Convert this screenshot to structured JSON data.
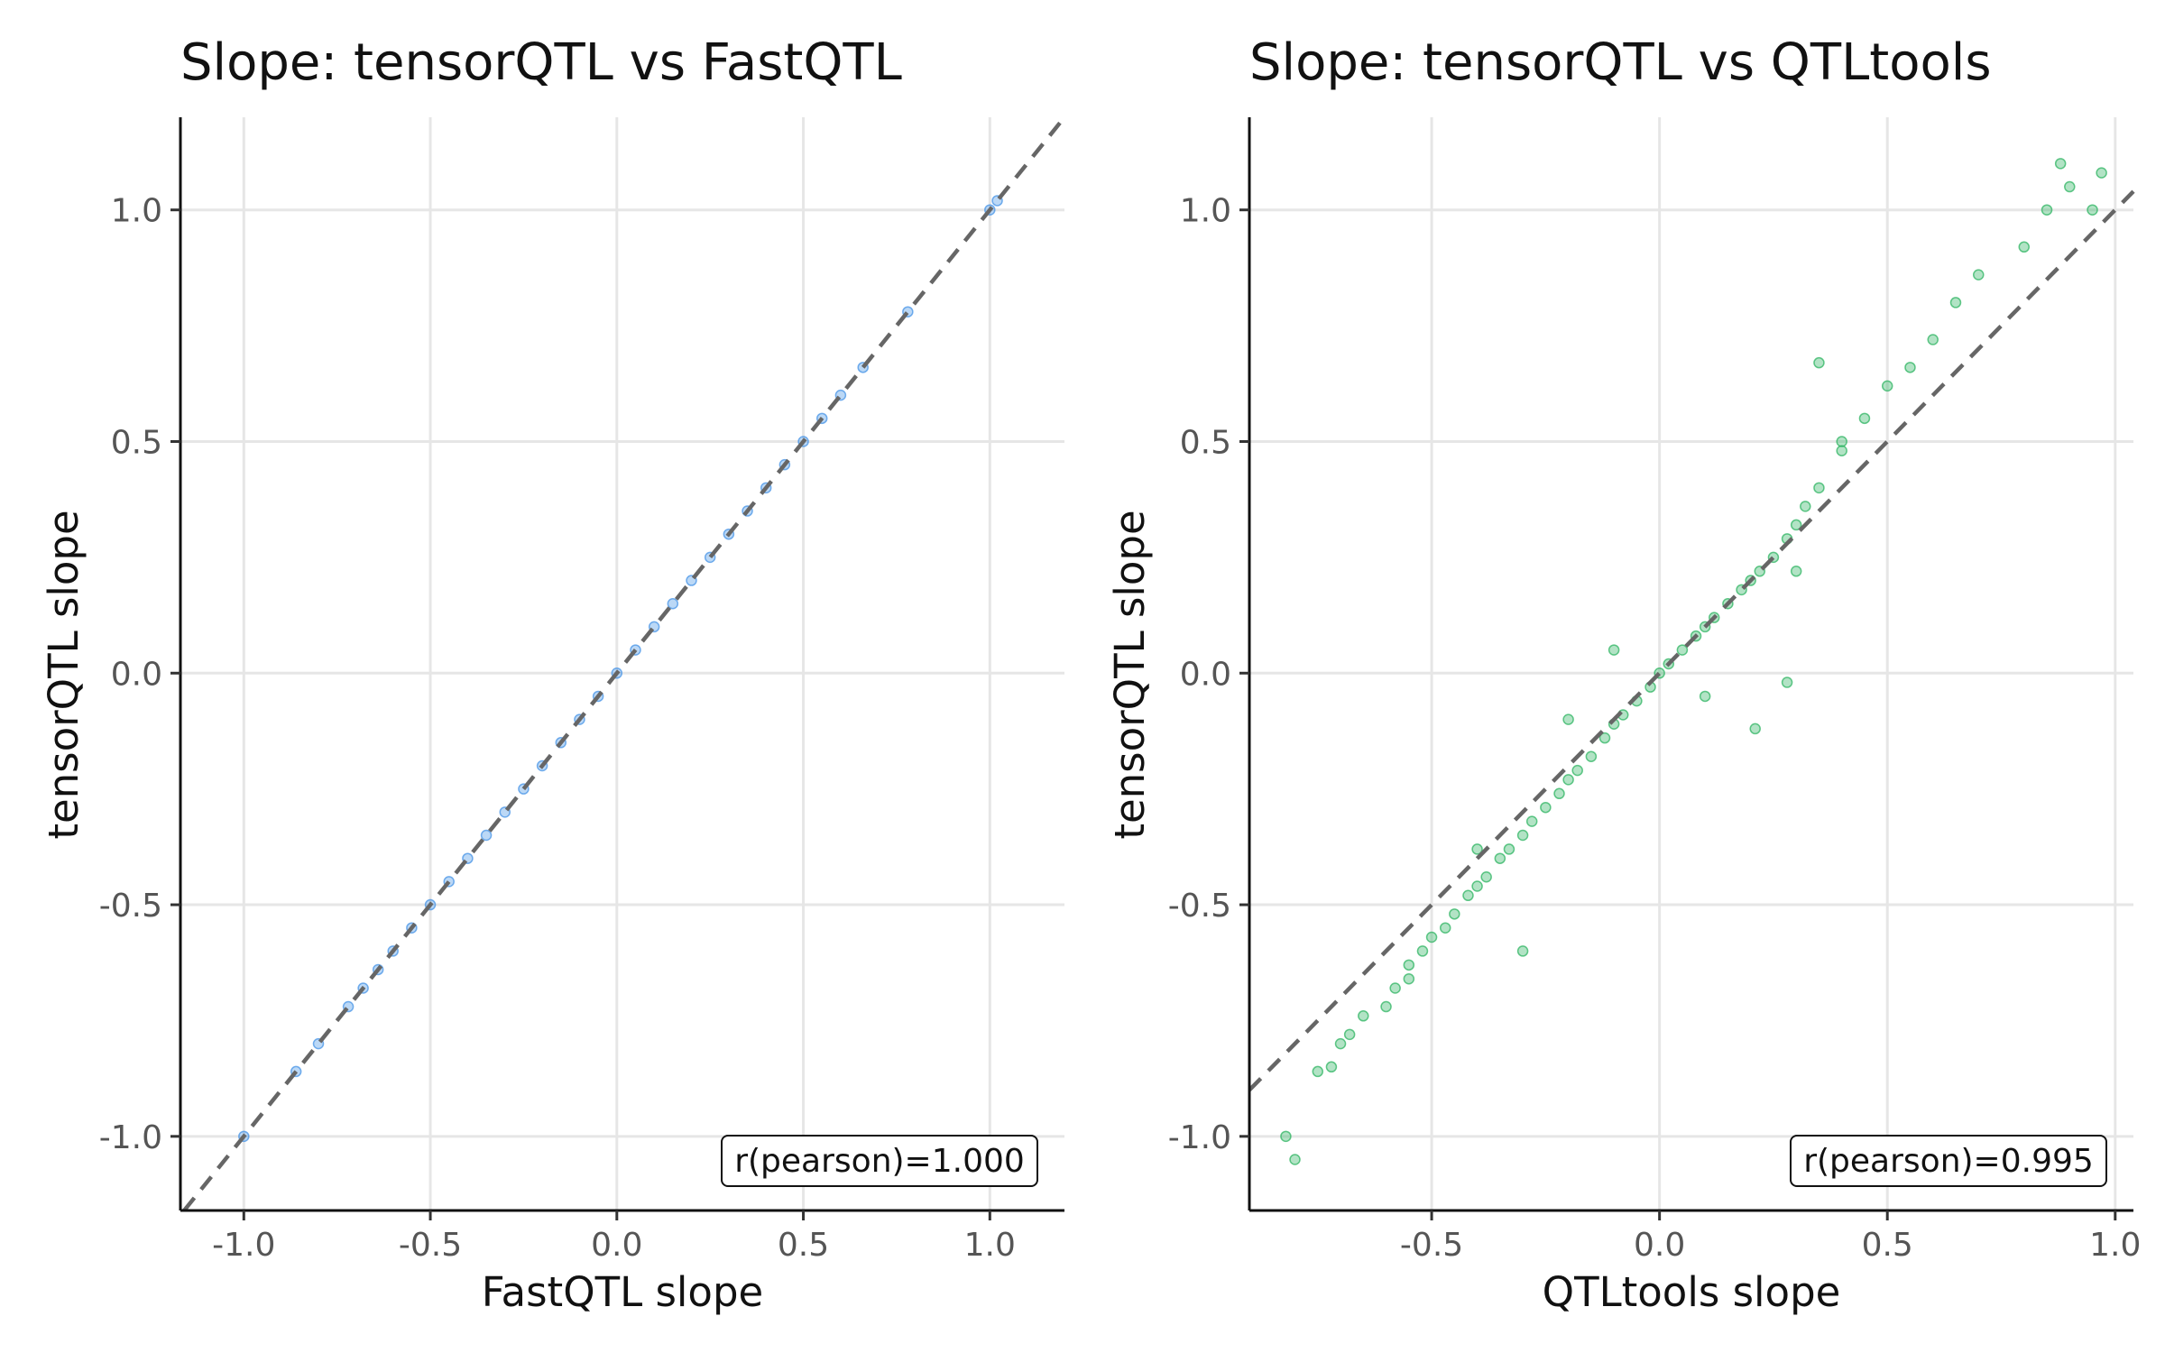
{
  "chart_data": [
    {
      "type": "scatter",
      "title": "Slope: tensorQTL vs FastQTL",
      "xlabel": "FastQTL slope",
      "ylabel": "tensorQTL slope",
      "xlim": [
        -1.17,
        1.2
      ],
      "ylim": [
        -1.16,
        1.2
      ],
      "xticks": [
        -1.0,
        -0.5,
        0.0,
        0.5,
        1.0
      ],
      "yticks": [
        -1.0,
        -0.5,
        0.0,
        0.5,
        1.0
      ],
      "tick_labels": [
        "-1.0",
        "-0.5",
        "0.0",
        "0.5",
        "1.0"
      ],
      "grid": true,
      "point_color": "#3d8fe6",
      "reference_line": "y = x (dashed)",
      "annotation": {
        "text": "r(pearson)=1.000",
        "position": "bottom-right"
      },
      "points": [
        [
          -1.0,
          -1.0
        ],
        [
          -0.86,
          -0.86
        ],
        [
          -0.8,
          -0.8
        ],
        [
          -0.72,
          -0.72
        ],
        [
          -0.68,
          -0.68
        ],
        [
          -0.64,
          -0.64
        ],
        [
          -0.6,
          -0.6
        ],
        [
          -0.55,
          -0.55
        ],
        [
          -0.5,
          -0.5
        ],
        [
          -0.45,
          -0.45
        ],
        [
          -0.4,
          -0.4
        ],
        [
          -0.35,
          -0.35
        ],
        [
          -0.3,
          -0.3
        ],
        [
          -0.25,
          -0.25
        ],
        [
          -0.2,
          -0.2
        ],
        [
          -0.15,
          -0.15
        ],
        [
          -0.1,
          -0.1
        ],
        [
          -0.05,
          -0.05
        ],
        [
          0.0,
          0.0
        ],
        [
          0.05,
          0.05
        ],
        [
          0.1,
          0.1
        ],
        [
          0.15,
          0.15
        ],
        [
          0.2,
          0.2
        ],
        [
          0.25,
          0.25
        ],
        [
          0.3,
          0.3
        ],
        [
          0.35,
          0.35
        ],
        [
          0.4,
          0.4
        ],
        [
          0.45,
          0.45
        ],
        [
          0.5,
          0.5
        ],
        [
          0.55,
          0.55
        ],
        [
          0.6,
          0.6
        ],
        [
          0.66,
          0.66
        ],
        [
          0.78,
          0.78
        ],
        [
          1.0,
          1.0
        ],
        [
          1.02,
          1.02
        ]
      ]
    },
    {
      "type": "scatter",
      "title": "Slope: tensorQTL vs QTLtools",
      "xlabel": "QTLtools slope",
      "ylabel": "tensorQTL slope",
      "xlim": [
        -0.9,
        1.04
      ],
      "ylim": [
        -1.16,
        1.2
      ],
      "xticks": [
        -0.5,
        0.0,
        0.5,
        1.0
      ],
      "yticks": [
        -1.0,
        -0.5,
        0.0,
        0.5,
        1.0
      ],
      "xtick_labels": [
        "-0.5",
        "0.0",
        "0.5",
        "1.0"
      ],
      "ytick_labels": [
        "-1.0",
        "-0.5",
        "0.0",
        "0.5",
        "1.0"
      ],
      "grid": true,
      "point_color": "#23b05a",
      "reference_line": "y = x (dashed)",
      "annotation": {
        "text": "r(pearson)=0.995",
        "position": "bottom-right"
      },
      "points": [
        [
          -0.82,
          -1.0
        ],
        [
          -0.8,
          -1.05
        ],
        [
          -0.75,
          -0.86
        ],
        [
          -0.72,
          -0.85
        ],
        [
          -0.7,
          -0.8
        ],
        [
          -0.68,
          -0.78
        ],
        [
          -0.65,
          -0.74
        ],
        [
          -0.6,
          -0.72
        ],
        [
          -0.58,
          -0.68
        ],
        [
          -0.55,
          -0.63
        ],
        [
          -0.52,
          -0.6
        ],
        [
          -0.5,
          -0.57
        ],
        [
          -0.47,
          -0.55
        ],
        [
          -0.45,
          -0.52
        ],
        [
          -0.42,
          -0.48
        ],
        [
          -0.4,
          -0.46
        ],
        [
          -0.38,
          -0.44
        ],
        [
          -0.35,
          -0.4
        ],
        [
          -0.33,
          -0.38
        ],
        [
          -0.3,
          -0.35
        ],
        [
          -0.28,
          -0.32
        ],
        [
          -0.25,
          -0.29
        ],
        [
          -0.22,
          -0.26
        ],
        [
          -0.2,
          -0.23
        ],
        [
          -0.18,
          -0.21
        ],
        [
          -0.15,
          -0.18
        ],
        [
          -0.12,
          -0.14
        ],
        [
          -0.1,
          -0.11
        ],
        [
          -0.08,
          -0.09
        ],
        [
          -0.05,
          -0.06
        ],
        [
          -0.02,
          -0.03
        ],
        [
          0.0,
          0.0
        ],
        [
          0.02,
          0.02
        ],
        [
          0.05,
          0.05
        ],
        [
          0.08,
          0.08
        ],
        [
          0.1,
          0.1
        ],
        [
          0.12,
          0.12
        ],
        [
          0.15,
          0.15
        ],
        [
          0.18,
          0.18
        ],
        [
          0.2,
          0.2
        ],
        [
          0.22,
          0.22
        ],
        [
          0.25,
          0.25
        ],
        [
          0.28,
          0.29
        ],
        [
          0.3,
          0.32
        ],
        [
          0.32,
          0.36
        ],
        [
          0.35,
          0.4
        ],
        [
          0.4,
          0.48
        ],
        [
          0.45,
          0.55
        ],
        [
          0.5,
          0.62
        ],
        [
          0.55,
          0.66
        ],
        [
          0.6,
          0.72
        ],
        [
          0.65,
          0.8
        ],
        [
          0.7,
          0.86
        ],
        [
          0.8,
          0.92
        ],
        [
          0.85,
          1.0
        ],
        [
          0.88,
          1.1
        ],
        [
          0.9,
          1.05
        ],
        [
          0.95,
          1.0
        ],
        [
          0.97,
          1.08
        ],
        [
          0.35,
          0.67
        ],
        [
          0.21,
          -0.12
        ],
        [
          0.28,
          -0.02
        ],
        [
          -0.3,
          -0.6
        ],
        [
          -0.55,
          -0.66
        ],
        [
          -0.2,
          -0.1
        ],
        [
          0.1,
          -0.05
        ],
        [
          -0.1,
          0.05
        ],
        [
          0.3,
          0.22
        ],
        [
          0.4,
          0.5
        ],
        [
          -0.4,
          -0.38
        ]
      ]
    }
  ]
}
